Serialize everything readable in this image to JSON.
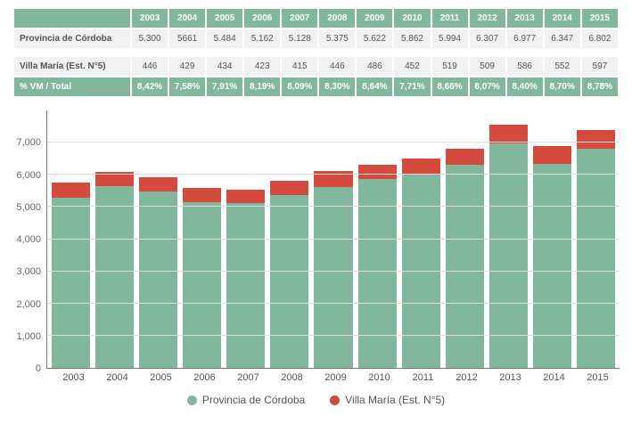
{
  "years": [
    "2003",
    "2004",
    "2005",
    "2006",
    "2007",
    "2008",
    "2009",
    "2010",
    "2011",
    "2012",
    "2013",
    "2014",
    "2015"
  ],
  "rows": {
    "cordoba": {
      "label": "Provincia de Córdoba",
      "values": [
        "5.300",
        "5661",
        "5.484",
        "5.162",
        "5.128",
        "5.375",
        "5.622",
        "5.862",
        "5.994",
        "6.307",
        "6.977",
        "6.347",
        "6.802"
      ]
    },
    "villa": {
      "label": "Villa María (Est. N°5)",
      "values": [
        "446",
        "429",
        "434",
        "423",
        "415",
        "446",
        "486",
        "452",
        "519",
        "509",
        "586",
        "552",
        "597"
      ]
    },
    "pct": {
      "label": "% VM / Total",
      "values": [
        "8,42%",
        "7,58%",
        "7,91%",
        "8,19%",
        "8,09%",
        "8,30%",
        "8,64%",
        "7,71%",
        "8,66%",
        "8,07%",
        "8,40%",
        "8,70%",
        "8,78%"
      ]
    }
  },
  "chart": {
    "type": "bar-stacked",
    "ymax": 8000,
    "yticks": [
      "7,000",
      "6,000",
      "5,000",
      "4,000",
      "3,000",
      "2,000",
      "1,000",
      "0"
    ],
    "ytick_values": [
      7000,
      6000,
      5000,
      4000,
      3000,
      2000,
      1000,
      0
    ],
    "series": [
      {
        "key": "cordoba",
        "label": "Provincia de Córdoba",
        "color": "#80b79d",
        "v": [
          5300,
          5661,
          5484,
          5162,
          5128,
          5375,
          5622,
          5862,
          5994,
          6307,
          6977,
          6347,
          6802
        ]
      },
      {
        "key": "villa",
        "label": "Villa María (Est. N°5)",
        "color": "#d54a3f",
        "v": [
          446,
          429,
          434,
          423,
          415,
          446,
          486,
          452,
          519,
          509,
          586,
          552,
          597
        ]
      }
    ],
    "grid_color": "#dddddd",
    "axis_color": "#777777",
    "background": "#ffffff",
    "label_fontsize": 11,
    "label_color": "#666666"
  },
  "colors": {
    "green": "#80b79d",
    "red": "#d54a3f",
    "lightgrey": "#f1f1f1"
  }
}
